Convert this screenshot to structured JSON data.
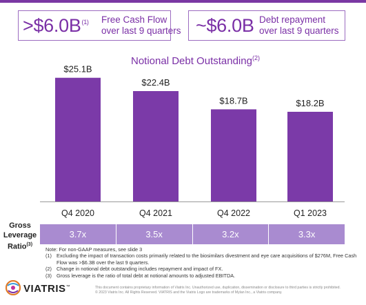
{
  "kpis": [
    {
      "value": ">$6.0B",
      "sup": "(1)",
      "line1": "Free Cash Flow",
      "line2": "over last 9 quarters"
    },
    {
      "value": "~$6.0B",
      "sup": "",
      "line1": "Debt repayment",
      "line2": "over last 9 quarters"
    }
  ],
  "colors": {
    "accent": "#7a2fa6",
    "bar": "#7b3aa8",
    "ratio_row": "#a98bd0"
  },
  "chart_data": {
    "type": "bar",
    "title": "Notional Debt Outstanding",
    "title_sup": "(2)",
    "categories": [
      "Q4 2020",
      "Q4 2021",
      "Q4 2022",
      "Q1 2023"
    ],
    "values": [
      25.1,
      22.4,
      18.7,
      18.2
    ],
    "labels": [
      "$25.1B",
      "$22.4B",
      "$18.7B",
      "$18.2B"
    ],
    "unit": "$B",
    "ylim": [
      0,
      28
    ],
    "grid": false,
    "legend": "none"
  },
  "leverage": {
    "label_line1": "Gross",
    "label_line2": "Leverage",
    "label_line3": "Ratio",
    "label_sup": "(3)",
    "values": [
      "3.7x",
      "3.5x",
      "3.2x",
      "3.3x"
    ]
  },
  "notes": {
    "intro": "Note: For non-GAAP measures, see slide 3",
    "items": [
      {
        "num": "(1)",
        "text": "Excluding the impact of transaction costs primarily related to the biosimilars divestment and eye care acquisitions of $276M, Free Cash Flow was >$6.3B over the last 9 quarters."
      },
      {
        "num": "(2)",
        "text": "Change in notional debt outstanding includes repayment and impact of FX."
      },
      {
        "num": "(3)",
        "text": "Gross leverage is the ratio of total debt at notional amounts to adjusted EBITDA."
      }
    ]
  },
  "footer": {
    "brand": "VIATRIS",
    "brand_tm": "™",
    "disclaimer_line1": "This document contains proprietary information of Viatris Inc. Unauthorized use, duplication, dissemination or disclosure to third parties is strictly prohibited.",
    "disclaimer_line2": "© 2023 Viatris Inc. All Rights Reserved. VIATRIS and the Viatris Logo are trademarks of Mylan Inc., a Viatris company."
  }
}
